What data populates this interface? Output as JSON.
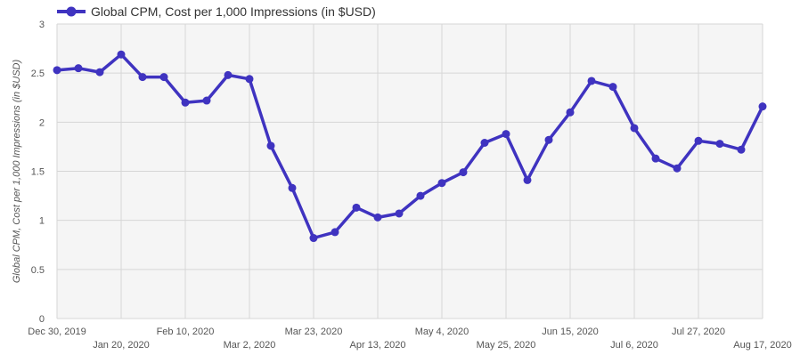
{
  "chart_data": {
    "type": "line",
    "title": "",
    "xlabel": "",
    "ylabel": "Global CPM, Cost per 1,000 Impressions (in $USD)",
    "ylim": [
      0,
      3
    ],
    "y_ticks": [
      "0",
      "0.5",
      "1",
      "1.5",
      "2",
      "2.5",
      "3"
    ],
    "x": [
      "Dec 30, 2019",
      "Jan 6, 2020",
      "Jan 13, 2020",
      "Jan 20, 2020",
      "Jan 27, 2020",
      "Feb 3, 2020",
      "Feb 10, 2020",
      "Feb 17, 2020",
      "Feb 24, 2020",
      "Mar 2, 2020",
      "Mar 9, 2020",
      "Mar 16, 2020",
      "Mar 23, 2020",
      "Mar 30, 2020",
      "Apr 6, 2020",
      "Apr 13, 2020",
      "Apr 20, 2020",
      "Apr 27, 2020",
      "May 4, 2020",
      "May 11, 2020",
      "May 18, 2020",
      "May 25, 2020",
      "Jun 1, 2020",
      "Jun 8, 2020",
      "Jun 15, 2020",
      "Jun 22, 2020",
      "Jun 29, 2020",
      "Jul 6, 2020",
      "Jul 13, 2020",
      "Jul 20, 2020",
      "Jul 27, 2020",
      "Aug 3, 2020",
      "Aug 10, 2020",
      "Aug 17, 2020"
    ],
    "x_tick_labels": [
      "Dec 30, 2019",
      "Jan 20, 2020",
      "Feb 10, 2020",
      "Mar 2, 2020",
      "Mar 23, 2020",
      "Apr 13, 2020",
      "May 4, 2020",
      "May 25, 2020",
      "Jun 15, 2020",
      "Jul 6, 2020",
      "Jul 27, 2020",
      "Aug 17, 2020"
    ],
    "series": [
      {
        "name": "Global CPM, Cost per 1,000 Impressions (in $USD)",
        "color": "#3f33c0",
        "values": [
          2.53,
          2.55,
          2.51,
          2.69,
          2.46,
          2.46,
          2.2,
          2.22,
          2.48,
          2.44,
          1.76,
          1.33,
          0.82,
          0.88,
          1.13,
          1.03,
          1.07,
          1.25,
          1.38,
          1.49,
          1.79,
          1.88,
          1.41,
          1.82,
          2.1,
          2.42,
          2.36,
          1.94,
          1.63,
          1.53,
          1.81,
          1.78,
          1.72,
          2.16
        ]
      }
    ],
    "grid": true,
    "legend": "top-left",
    "plot_background": "#f5f5f5",
    "grid_color": "#d6d6d6"
  }
}
